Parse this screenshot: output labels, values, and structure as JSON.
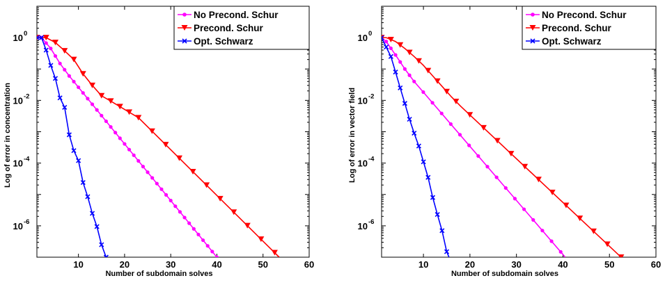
{
  "chart_data": [
    {
      "type": "line",
      "title": "",
      "xlabel": "Number of subdomain solves",
      "ylabel": "Log of error in concentration",
      "xlim": [
        1,
        60
      ],
      "ylim": [
        1e-07,
        10
      ],
      "yscale": "log",
      "x_ticks": [
        "10",
        "20",
        "30",
        "40",
        "50",
        "60"
      ],
      "y_ticks": [
        {
          "base": "10",
          "exp": "0"
        },
        {
          "base": "10",
          "exp": "-2"
        },
        {
          "base": "10",
          "exp": "-4"
        },
        {
          "base": "10",
          "exp": "-6"
        }
      ],
      "legend": "top-right",
      "series": [
        {
          "name": "No Precond. Schur",
          "color": "#ff00ff",
          "marker": "dot",
          "points": [
            [
              1,
              1.0
            ],
            [
              2,
              1.0
            ],
            [
              4,
              0.45
            ],
            [
              6,
              0.15
            ],
            [
              8,
              0.06
            ],
            [
              40,
              1e-07
            ]
          ]
        },
        {
          "name": "Precond. Schur",
          "color": "#ff0000",
          "marker": "triangle-down",
          "points": [
            [
              1,
              1.0
            ],
            [
              3,
              1.0
            ],
            [
              5,
              0.7
            ],
            [
              7,
              0.38
            ],
            [
              9,
              0.2
            ],
            [
              11,
              0.07
            ],
            [
              13,
              0.03
            ],
            [
              15,
              0.014
            ],
            [
              17,
              0.0095
            ],
            [
              19,
              0.0063
            ],
            [
              21,
              0.0042
            ],
            [
              23,
              0.0028
            ],
            [
              53.5,
              1e-07
            ]
          ]
        },
        {
          "name": "Opt. Schwarz",
          "color": "#0000ff",
          "marker": "x",
          "points": [
            [
              1,
              1.0
            ],
            [
              2,
              1.0
            ],
            [
              3,
              0.4
            ],
            [
              4,
              0.13
            ],
            [
              5,
              0.05
            ],
            [
              6,
              0.012
            ],
            [
              7,
              0.006
            ],
            [
              8,
              0.0008
            ],
            [
              9,
              0.00025
            ],
            [
              10,
              0.00012
            ],
            [
              11,
              2.4e-05
            ],
            [
              12,
              8.5e-06
            ],
            [
              13,
              2.5e-06
            ],
            [
              14,
              9.5e-07
            ],
            [
              15,
              2.5e-07
            ],
            [
              16,
              1e-07
            ]
          ]
        }
      ]
    },
    {
      "type": "line",
      "title": "",
      "xlabel": "Number of subdomain solves",
      "ylabel": "Log of error in vector field",
      "xlim": [
        1,
        60
      ],
      "ylim": [
        1e-07,
        10
      ],
      "yscale": "log",
      "x_ticks": [
        "10",
        "20",
        "30",
        "40",
        "50",
        "60"
      ],
      "y_ticks": [
        {
          "base": "10",
          "exp": "0"
        },
        {
          "base": "10",
          "exp": "-2"
        },
        {
          "base": "10",
          "exp": "-4"
        },
        {
          "base": "10",
          "exp": "-6"
        }
      ],
      "legend": "top-right",
      "series": [
        {
          "name": "No Precond. Schur",
          "color": "#ff00ff",
          "marker": "dot",
          "points": [
            [
              1,
              1.0
            ],
            [
              2,
              0.75
            ],
            [
              4,
              0.28
            ],
            [
              6,
              0.1
            ],
            [
              8,
              0.04
            ],
            [
              40.5,
              1e-07
            ]
          ]
        },
        {
          "name": "Precond. Schur",
          "color": "#ff0000",
          "marker": "triangle-down",
          "points": [
            [
              1,
              1.0
            ],
            [
              2,
              1.0
            ],
            [
              4,
              0.75
            ],
            [
              6,
              0.45
            ],
            [
              8,
              0.25
            ],
            [
              10,
              0.13
            ],
            [
              12,
              0.06
            ],
            [
              14,
              0.028
            ],
            [
              16,
              0.013
            ],
            [
              18,
              0.0065
            ],
            [
              52.5,
              1e-07
            ]
          ]
        },
        {
          "name": "Opt. Schwarz",
          "color": "#0000ff",
          "marker": "x",
          "points": [
            [
              1,
              1.0
            ],
            [
              2,
              0.5
            ],
            [
              3,
              0.25
            ],
            [
              4,
              0.08
            ],
            [
              5,
              0.025
            ],
            [
              6,
              0.008
            ],
            [
              7,
              0.0025
            ],
            [
              8,
              0.0009
            ],
            [
              9,
              0.00035
            ],
            [
              10,
              0.00011
            ],
            [
              11,
              3.5e-05
            ],
            [
              12,
              8e-06
            ],
            [
              13,
              2.3e-06
            ],
            [
              14,
              7e-07
            ],
            [
              15,
              1.5e-07
            ],
            [
              15.5,
              1e-07
            ]
          ]
        }
      ]
    }
  ]
}
